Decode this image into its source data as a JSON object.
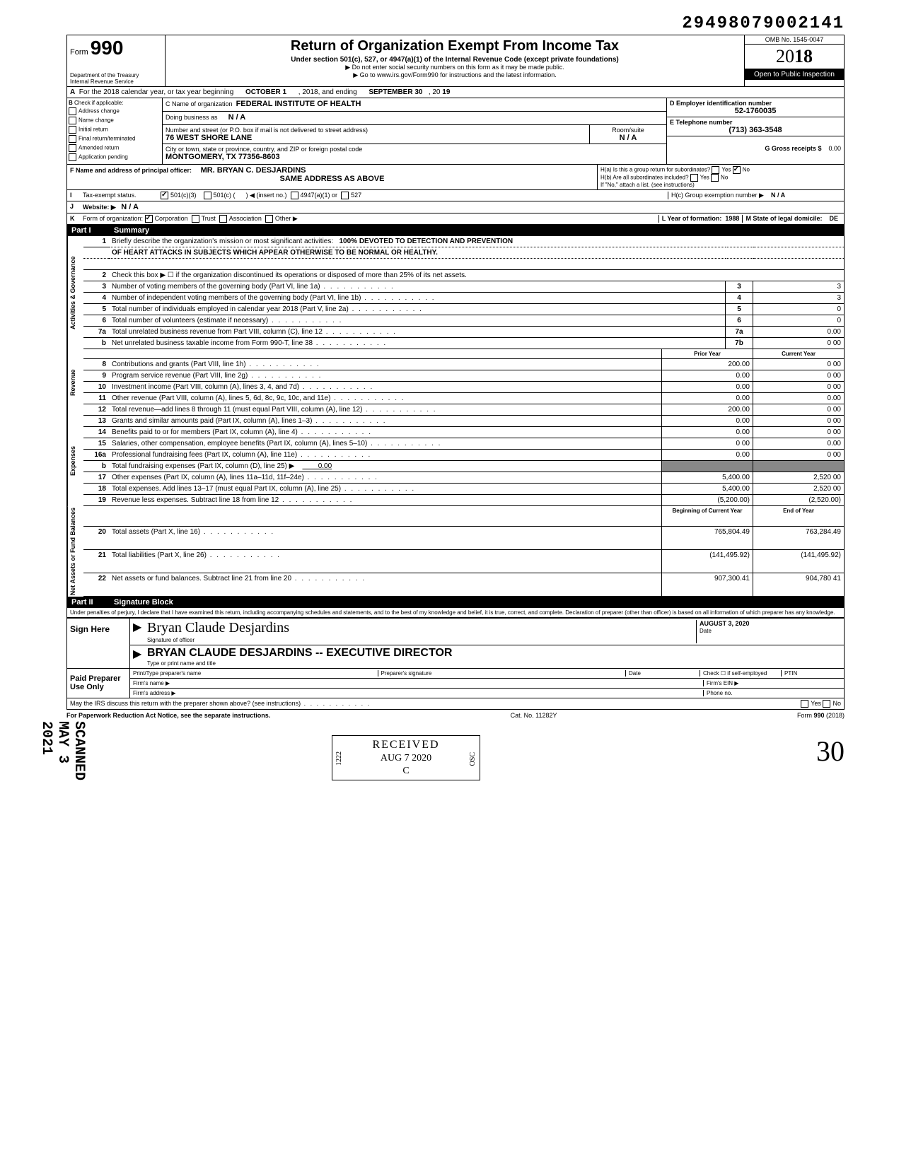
{
  "top_number": "29498079002141",
  "omb": "OMB No. 1545-0047",
  "form_number": "990",
  "form_label": "Form",
  "year_display": "2018",
  "title": "Return of Organization Exempt From Income Tax",
  "subtitle": "Under section 501(c), 527, or 4947(a)(1) of the Internal Revenue Code (except private foundations)",
  "note1": "▶ Do not enter social security numbers on this form as it may be made public.",
  "note2": "▶ Go to www.irs.gov/Form990 for instructions and the latest information.",
  "open_public": "Open to Public Inspection",
  "dept": "Department of the Treasury",
  "irs": "Internal Revenue Service",
  "line_a": {
    "label": "For the 2018 calendar year, or tax year beginning",
    "begin": "OCTOBER 1",
    "mid": ", 2018, and ending",
    "end": "SEPTEMBER 30",
    "endyr_label": ", 20",
    "endyr": "19"
  },
  "section_b": {
    "label": "Check if applicable:",
    "items": [
      "Address change",
      "Name change",
      "Initial return",
      "Final return/terminated",
      "Amended return",
      "Application pending"
    ]
  },
  "section_c": {
    "name_label": "C Name of organization",
    "name": "FEDERAL INSTITUTE OF HEALTH",
    "dba_label": "Doing business as",
    "dba": "N / A",
    "street_label": "Number and street (or P.O. box if mail is not delivered to street address)",
    "street": "76 WEST SHORE LANE",
    "room_label": "Room/suite",
    "room": "N / A",
    "city_label": "City or town, state or province, country, and ZIP or foreign postal code",
    "city": "MONTGOMERY, TX 77356-8603"
  },
  "section_d": {
    "label": "D Employer identification number",
    "value": "52-1760035"
  },
  "section_e": {
    "label": "E Telephone number",
    "value": "(713) 363-3548"
  },
  "section_g": {
    "label": "G Gross receipts $",
    "value": "0.00"
  },
  "section_f": {
    "label": "F Name and address of principal officer:",
    "name": "MR. BRYAN C. DESJARDINS",
    "addr": "SAME ADDRESS AS ABOVE"
  },
  "section_h": {
    "a": "H(a) Is this a group return for subordinates?",
    "b": "H(b) Are all subordinates included?",
    "note": "If \"No,\" attach a list. (see instructions)",
    "c": "H(c) Group exemption number ▶",
    "c_val": "N / A",
    "yes": "Yes",
    "no": "No"
  },
  "line_i": {
    "label": "Tax-exempt status.",
    "opts": [
      "501(c)(3)",
      "501(c) (",
      ") ◀ (insert no.)",
      "4947(a)(1) or",
      "527"
    ]
  },
  "line_j": {
    "label": "Website: ▶",
    "value": "N / A"
  },
  "line_k": {
    "label": "Form of organization:",
    "opts": [
      "Corporation",
      "Trust",
      "Association",
      "Other ▶"
    ],
    "year_label": "L Year of formation:",
    "year": "1988",
    "state_label": "M State of legal domicile:",
    "state": "DE"
  },
  "part1": {
    "label": "Part I",
    "title": "Summary"
  },
  "summary_sections": [
    {
      "side": "Activities & Governance",
      "rows": [
        {
          "n": "1",
          "t": "Briefly describe the organization's mission or most significant activities:",
          "extra": "100% DEVOTED TO DETECTION AND PREVENTION",
          "line2": "OF HEART ATTACKS IN SUBJECTS WHICH APPEAR OTHERWISE TO BE NORMAL OR HEALTHY."
        },
        {
          "n": "2",
          "t": "Check this box ▶ ☐ if the organization discontinued its operations or disposed of more than 25% of its net assets."
        },
        {
          "n": "3",
          "t": "Number of voting members of the governing body (Part VI, line 1a)",
          "rh": "3",
          "v2": "3"
        },
        {
          "n": "4",
          "t": "Number of independent voting members of the governing body (Part VI, line 1b)",
          "rh": "4",
          "v2": "3"
        },
        {
          "n": "5",
          "t": "Total number of individuals employed in calendar year 2018 (Part V, line 2a)",
          "rh": "5",
          "v2": "0"
        },
        {
          "n": "6",
          "t": "Total number of volunteers (estimate if necessary)",
          "rh": "6",
          "v2": "0"
        },
        {
          "n": "7a",
          "t": "Total unrelated business revenue from Part VIII, column (C), line 12",
          "rh": "7a",
          "v2": "0.00"
        },
        {
          "n": "b",
          "t": "Net unrelated business taxable income from Form 990-T, line 38",
          "rh": "7b",
          "v2": "0 00"
        }
      ]
    },
    {
      "side": "Revenue",
      "header": [
        "Prior Year",
        "Current Year"
      ],
      "rows": [
        {
          "n": "8",
          "t": "Contributions and grants (Part VIII, line 1h)",
          "v1": "200.00",
          "v2": "0 00"
        },
        {
          "n": "9",
          "t": "Program service revenue (Part VIII, line 2g)",
          "v1": "0.00",
          "v2": "0 00"
        },
        {
          "n": "10",
          "t": "Investment income (Part VIII, column (A), lines 3, 4, and 7d)",
          "v1": "0.00",
          "v2": "0 00"
        },
        {
          "n": "11",
          "t": "Other revenue (Part VIII, column (A), lines 5, 6d, 8c, 9c, 10c, and 11e)",
          "v1": "0.00",
          "v2": "0.00"
        },
        {
          "n": "12",
          "t": "Total revenue—add lines 8 through 11 (must equal Part VIII, column (A), line 12)",
          "v1": "200.00",
          "v2": "0 00"
        }
      ]
    },
    {
      "side": "Expenses",
      "rows": [
        {
          "n": "13",
          "t": "Grants and similar amounts paid (Part IX, column (A), lines 1–3)",
          "v1": "0.00",
          "v2": "0 00"
        },
        {
          "n": "14",
          "t": "Benefits paid to or for members (Part IX, column (A), line 4)",
          "v1": "0.00",
          "v2": "0 00"
        },
        {
          "n": "15",
          "t": "Salaries, other compensation, employee benefits (Part IX, column (A), lines 5–10)",
          "v1": "0 00",
          "v2": "0.00"
        },
        {
          "n": "16a",
          "t": "Professional fundraising fees (Part IX, column (A), line 11e)",
          "v1": "0.00",
          "v2": "0 00"
        },
        {
          "n": "b",
          "t": "Total fundraising expenses (Part IX, column (D), line 25) ▶",
          "inline": "0.00",
          "shaded": true
        },
        {
          "n": "17",
          "t": "Other expenses (Part IX, column (A), lines 11a–11d, 11f–24e)",
          "v1": "5,400.00",
          "v2": "2,520 00"
        },
        {
          "n": "18",
          "t": "Total expenses. Add lines 13–17 (must equal Part IX, column (A), line 25)",
          "v1": "5,400.00",
          "v2": "2,520 00"
        },
        {
          "n": "19",
          "t": "Revenue less expenses. Subtract line 18 from line 12",
          "v1": "(5,200.00)",
          "v2": "(2,520.00)"
        }
      ]
    },
    {
      "side": "Net Assets or Fund Balances",
      "header": [
        "Beginning of Current Year",
        "End of Year"
      ],
      "rows": [
        {
          "n": "20",
          "t": "Total assets (Part X, line 16)",
          "v1": "765,804.49",
          "v2": "763,284.49"
        },
        {
          "n": "21",
          "t": "Total liabilities (Part X, line 26)",
          "v1": "(141,495.92)",
          "v2": "(141,495.92)"
        },
        {
          "n": "22",
          "t": "Net assets or fund balances. Subtract line 21 from line 20",
          "v1": "907,300.41",
          "v2": "904,780 41"
        }
      ]
    }
  ],
  "part2": {
    "label": "Part II",
    "title": "Signature Block"
  },
  "perjury": "Under penalties of perjury, I declare that I have examined this return, including accompanying schedules and statements, and to the best of my knowledge and belief, it is true, correct, and complete. Declaration of preparer (other than officer) is based on all information of which preparer has any knowledge.",
  "sign": {
    "label": "Sign Here",
    "signature": "Bryan Claude Desjardins",
    "sig_label": "Signature of officer",
    "date_label": "Date",
    "date": "AUGUST 3, 2020",
    "typed": "BRYAN CLAUDE DESJARDINS -- EXECUTIVE DIRECTOR",
    "typed_label": "Type or print name and title"
  },
  "preparer": {
    "label": "Paid Preparer Use Only",
    "cols": [
      "Print/Type preparer's name",
      "Preparer's signature",
      "Date"
    ],
    "check": "Check ☐ if self-employed",
    "ptin": "PTIN",
    "firm_name": "Firm's name ▶",
    "firm_ein": "Firm's EIN ▶",
    "firm_addr": "Firm's address ▶",
    "phone": "Phone no."
  },
  "discuss": "May the IRS discuss this return with the preparer shown above? (see instructions)",
  "discuss_yes": "Yes",
  "discuss_no": "No",
  "footer": {
    "left": "For Paperwork Reduction Act Notice, see the separate instructions.",
    "mid": "Cat. No. 11282Y",
    "right": "Form 990 (2018)"
  },
  "scanned": "SCANNED MAY 3 2021",
  "received": {
    "title": "RECEIVED",
    "date": "AUG 7 2020",
    "num": "1222",
    "side": "OSC"
  },
  "handwritten_30": "30"
}
